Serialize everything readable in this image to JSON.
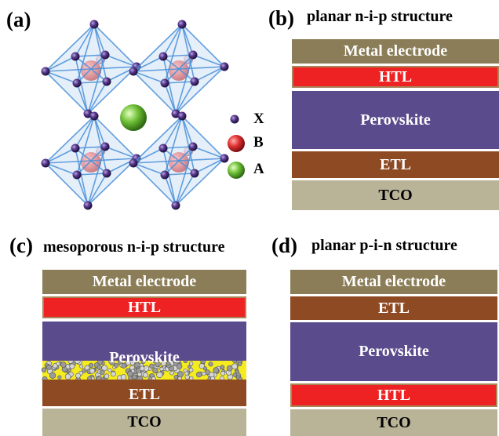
{
  "colors": {
    "metal": "#8b7d57",
    "htl": "#ee2222",
    "perovskite": "#5a4b8c",
    "etl": "#8e4a23",
    "tco": "#b9b498",
    "mesoporous": "#f5ec1f",
    "lattice": "#4a8fd8",
    "atom_x": "#4a2a78",
    "atom_b": "#d81e2a",
    "atom_a": "#5aa823"
  },
  "panel_a": {
    "letter": "(a)",
    "legend": [
      {
        "label": "X",
        "icon": "small-purple-sphere"
      },
      {
        "label": "B",
        "icon": "red-sphere"
      },
      {
        "label": "A",
        "icon": "green-sphere"
      }
    ]
  },
  "panel_b": {
    "letter": "(b)",
    "title": "planar n-i-p structure",
    "layers": [
      "Metal electrode",
      "HTL",
      "Perovskite",
      "ETL",
      "TCO"
    ]
  },
  "panel_c": {
    "letter": "(c)",
    "title": "mesoporous n-i-p structure",
    "layers": [
      "Metal electrode",
      "HTL",
      "Perovskite",
      "ETL",
      "TCO"
    ]
  },
  "panel_d": {
    "letter": "(d)",
    "title": "planar p-i-n structure",
    "layers": [
      "Metal electrode",
      "ETL",
      "Perovskite",
      "HTL",
      "TCO"
    ]
  }
}
